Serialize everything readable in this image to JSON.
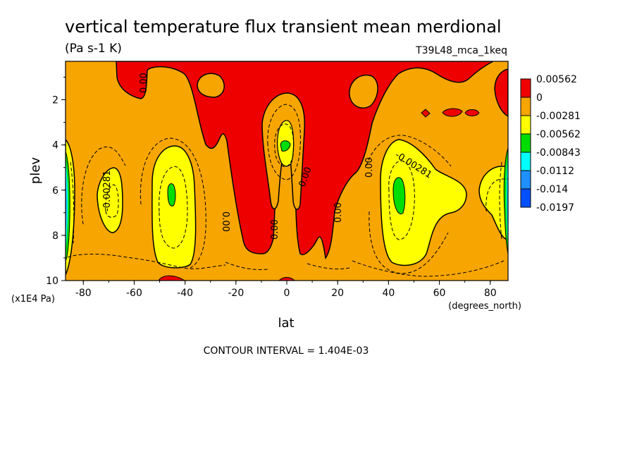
{
  "chart_data": {
    "type": "heatmap",
    "title": "vertical temperature flux transient mean merdional",
    "units": "(Pa s-1 K)",
    "dataset": "T39L48_mca_1keq",
    "xlabel": "lat",
    "x_units": "(degrees_north)",
    "ylabel": "plev",
    "y_units": "(x1E4 Pa)",
    "xlim": [
      -87,
      87
    ],
    "ylim": [
      10,
      0.3
    ],
    "x_ticks": [
      "-80",
      "-60",
      "-40",
      "-20",
      "0",
      "20",
      "40",
      "60",
      "80"
    ],
    "y_ticks": [
      "2",
      "4",
      "6",
      "8",
      "10"
    ],
    "contour_interval_label": "CONTOUR INTERVAL = 1.404E-03",
    "contour_labels": [
      "0.00",
      "0.00",
      "0.00",
      "0.00",
      "0.00",
      "0.00",
      "-0.00281",
      "-0.00281"
    ],
    "colorbar": {
      "levels": [
        "0.00562",
        "0",
        "-0.00281",
        "-0.00562",
        "-0.00843",
        "-0.0112",
        "-0.014",
        "-0.0197"
      ],
      "colors": [
        "#ee0000",
        "#f7a500",
        "#f7a500",
        "#ffff00",
        "#00dd00",
        "#00ffff",
        "#1e90ff",
        "#0050ff"
      ]
    },
    "fill_colors": {
      "positive": "#ee0000",
      "zero_to_neg1": "#f7a500",
      "neg1_to_neg2": "#ffff00",
      "neg2_to_neg3": "#00dd00",
      "neg3_to_neg4": "#00ffff",
      "neg4_to_neg5": "#1e90ff"
    }
  }
}
